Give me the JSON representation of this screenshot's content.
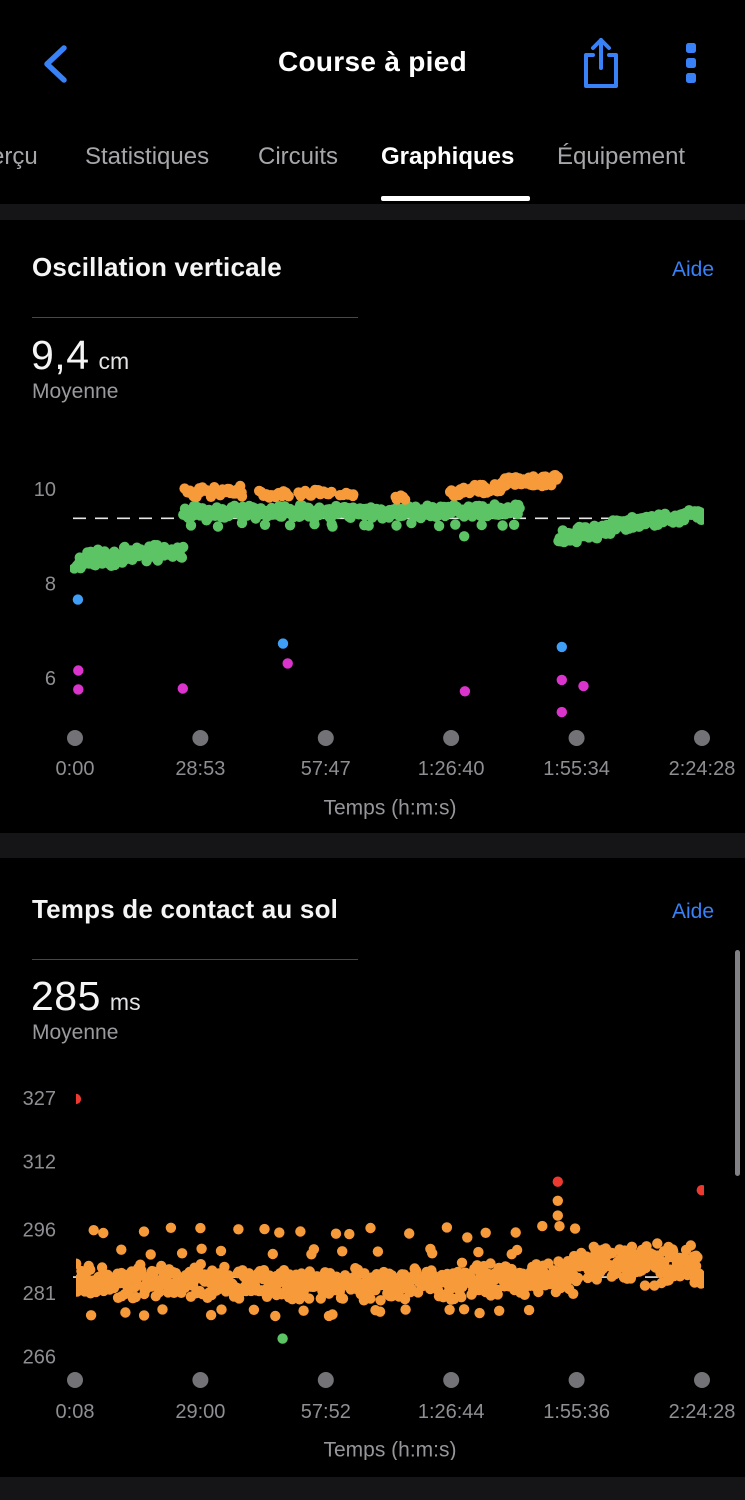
{
  "accent_color": "#3881f6",
  "header": {
    "title": "Course à pied",
    "back_icon": "chevron-left",
    "share_icon": "ios-share",
    "menu_icon": "kebab-menu"
  },
  "tabs": {
    "items": [
      {
        "label": "erçu",
        "active": false
      },
      {
        "label": "Statistiques",
        "active": false
      },
      {
        "label": "Circuits",
        "active": false
      },
      {
        "label": "Graphiques",
        "active": true
      },
      {
        "label": "Équipement",
        "active": false
      }
    ]
  },
  "cards": [
    {
      "title": "Oscillation verticale",
      "help_label": "Aide",
      "value": "9,4",
      "unit": "cm",
      "subtitle": "Moyenne"
    },
    {
      "title": "Temps de contact au sol",
      "help_label": "Aide",
      "value": "285",
      "unit": "ms",
      "subtitle": "Moyenne"
    }
  ],
  "chart_data": [
    {
      "type": "scatter",
      "title": "Oscillation verticale",
      "xlabel": "Temps (h:m:s)",
      "ylabel": "cm",
      "xlim": [
        0,
        8668
      ],
      "ylim": [
        5.05,
        10.85
      ],
      "mean": 9.4,
      "grid": false,
      "x_ticks": [
        {
          "label": "0:00",
          "t": 0
        },
        {
          "label": "28:53",
          "t": 1733
        },
        {
          "label": "57:47",
          "t": 3467
        },
        {
          "label": "1:26:40",
          "t": 5200
        },
        {
          "label": "1:55:34",
          "t": 6934
        },
        {
          "label": "2:24:28",
          "t": 8668
        }
      ],
      "y_ticks": [
        {
          "label": "10",
          "v": 10
        },
        {
          "label": "8",
          "v": 8
        },
        {
          "label": "6",
          "v": 6
        }
      ],
      "colors": {
        "green": "#5cc464",
        "orange": "#f79a3a",
        "magenta": "#da34cc",
        "blue": "#3f9ef6",
        "red": "#ec3a31"
      },
      "bands": [
        {
          "color": "green",
          "t0": 0,
          "t1": 140,
          "v0": 8.38,
          "v1": 8.44,
          "noise": 0.1,
          "step": 16
        },
        {
          "color": "green",
          "t0": 60,
          "t1": 1500,
          "v0": 8.52,
          "v1": 8.72,
          "noise": 0.2,
          "step": 12
        },
        {
          "color": "green",
          "t0": 1500,
          "t1": 6150,
          "v0": 9.52,
          "v1": 9.56,
          "noise": 0.16,
          "step": 12
        },
        {
          "color": "green",
          "t0": 1600,
          "t1": 6100,
          "v0": 9.27,
          "v1": 9.27,
          "noise": 0.1,
          "step": 260
        },
        {
          "color": "green",
          "t0": 6680,
          "t1": 7500,
          "v0": 9.0,
          "v1": 9.2,
          "noise": 0.19,
          "step": 13
        },
        {
          "color": "green",
          "t0": 7500,
          "t1": 8660,
          "v0": 9.26,
          "v1": 9.48,
          "noise": 0.14,
          "step": 12
        },
        {
          "color": "orange",
          "t0": 1520,
          "t1": 2320,
          "v0": 9.95,
          "v1": 9.98,
          "noise": 0.13,
          "step": 19
        },
        {
          "color": "orange",
          "t0": 2560,
          "t1": 2960,
          "v0": 9.9,
          "v1": 9.92,
          "noise": 0.1,
          "step": 25
        },
        {
          "color": "orange",
          "t0": 3080,
          "t1": 3540,
          "v0": 9.93,
          "v1": 9.95,
          "noise": 0.12,
          "step": 23
        },
        {
          "color": "orange",
          "t0": 3680,
          "t1": 3880,
          "v0": 9.88,
          "v1": 9.9,
          "noise": 0.08,
          "step": 30
        },
        {
          "color": "orange",
          "t0": 4420,
          "t1": 4580,
          "v0": 9.82,
          "v1": 9.85,
          "noise": 0.07,
          "step": 36
        },
        {
          "color": "orange",
          "t0": 5180,
          "t1": 5900,
          "v0": 9.95,
          "v1": 10.05,
          "noise": 0.13,
          "step": 17
        },
        {
          "color": "orange",
          "t0": 5900,
          "t1": 6670,
          "v0": 10.18,
          "v1": 10.22,
          "noise": 0.18,
          "step": 10
        }
      ],
      "outliers": [
        {
          "color": "blue",
          "t": 40,
          "v": 7.68
        },
        {
          "color": "magenta",
          "t": 45,
          "v": 6.18
        },
        {
          "color": "magenta",
          "t": 45,
          "v": 5.78
        },
        {
          "color": "magenta",
          "t": 1490,
          "v": 5.8
        },
        {
          "color": "blue",
          "t": 2875,
          "v": 6.75
        },
        {
          "color": "magenta",
          "t": 2940,
          "v": 6.33
        },
        {
          "color": "magenta",
          "t": 5390,
          "v": 5.74
        },
        {
          "color": "green",
          "t": 5380,
          "v": 9.02
        },
        {
          "color": "blue",
          "t": 6730,
          "v": 6.68
        },
        {
          "color": "magenta",
          "t": 6730,
          "v": 5.98
        },
        {
          "color": "magenta",
          "t": 7030,
          "v": 5.85
        },
        {
          "color": "magenta",
          "t": 6730,
          "v": 5.3
        }
      ]
    },
    {
      "type": "scatter",
      "title": "Temps de contact au sol",
      "xlabel": "Temps (h:m:s)",
      "ylabel": "ms",
      "xlim": [
        8,
        8668
      ],
      "ylim": [
        261,
        332
      ],
      "mean": 285,
      "grid": false,
      "x_ticks": [
        {
          "label": "0:08",
          "t": 8
        },
        {
          "label": "29:00",
          "t": 1740
        },
        {
          "label": "57:52",
          "t": 3472
        },
        {
          "label": "1:26:44",
          "t": 5204
        },
        {
          "label": "1:55:36",
          "t": 6936
        },
        {
          "label": "2:24:28",
          "t": 8668
        }
      ],
      "y_ticks": [
        {
          "label": "327",
          "v": 327
        },
        {
          "label": "312",
          "v": 312
        },
        {
          "label": "296",
          "v": 296
        },
        {
          "label": "281",
          "v": 281
        },
        {
          "label": "266",
          "v": 266
        }
      ],
      "colors": {
        "green": "#5cc464",
        "orange": "#f79a3a",
        "magenta": "#da34cc",
        "blue": "#3f9ef6",
        "red": "#ec3a31"
      },
      "bands": [
        {
          "color": "orange",
          "t0": 10,
          "t1": 1800,
          "v0": 284,
          "v1": 284,
          "noise": 4.8,
          "step": 12
        },
        {
          "color": "orange",
          "t0": 1800,
          "t1": 3600,
          "v0": 283.5,
          "v1": 283.5,
          "noise": 4.5,
          "step": 12
        },
        {
          "color": "orange",
          "t0": 3600,
          "t1": 5300,
          "v0": 283,
          "v1": 283.5,
          "noise": 4.3,
          "step": 12
        },
        {
          "color": "orange",
          "t0": 5300,
          "t1": 6900,
          "v0": 284,
          "v1": 285,
          "noise": 4.8,
          "step": 12
        },
        {
          "color": "orange",
          "t0": 6900,
          "t1": 8665,
          "v0": 288.5,
          "v1": 287.5,
          "noise": 5.4,
          "step": 10
        },
        {
          "color": "orange",
          "t0": 250,
          "t1": 6750,
          "v0": 295.8,
          "v1": 295.8,
          "noise": 1.6,
          "step": 360
        },
        {
          "color": "orange",
          "t0": 420,
          "t1": 6500,
          "v0": 277.0,
          "v1": 277.0,
          "noise": 1.5,
          "step": 330
        },
        {
          "color": "orange",
          "t0": 620,
          "t1": 6400,
          "v0": 290.8,
          "v1": 290.8,
          "noise": 1.2,
          "step": 410
        }
      ],
      "outliers": [
        {
          "color": "red",
          "t": 20,
          "v": 327
        },
        {
          "color": "red",
          "t": 6676,
          "v": 307.5
        },
        {
          "color": "red",
          "t": 8665,
          "v": 305.5
        },
        {
          "color": "orange",
          "t": 6676,
          "v": 303
        },
        {
          "color": "orange",
          "t": 6676,
          "v": 299.5
        },
        {
          "color": "orange",
          "t": 6700,
          "v": 297
        },
        {
          "color": "green",
          "t": 2875,
          "v": 270.5
        }
      ]
    }
  ]
}
